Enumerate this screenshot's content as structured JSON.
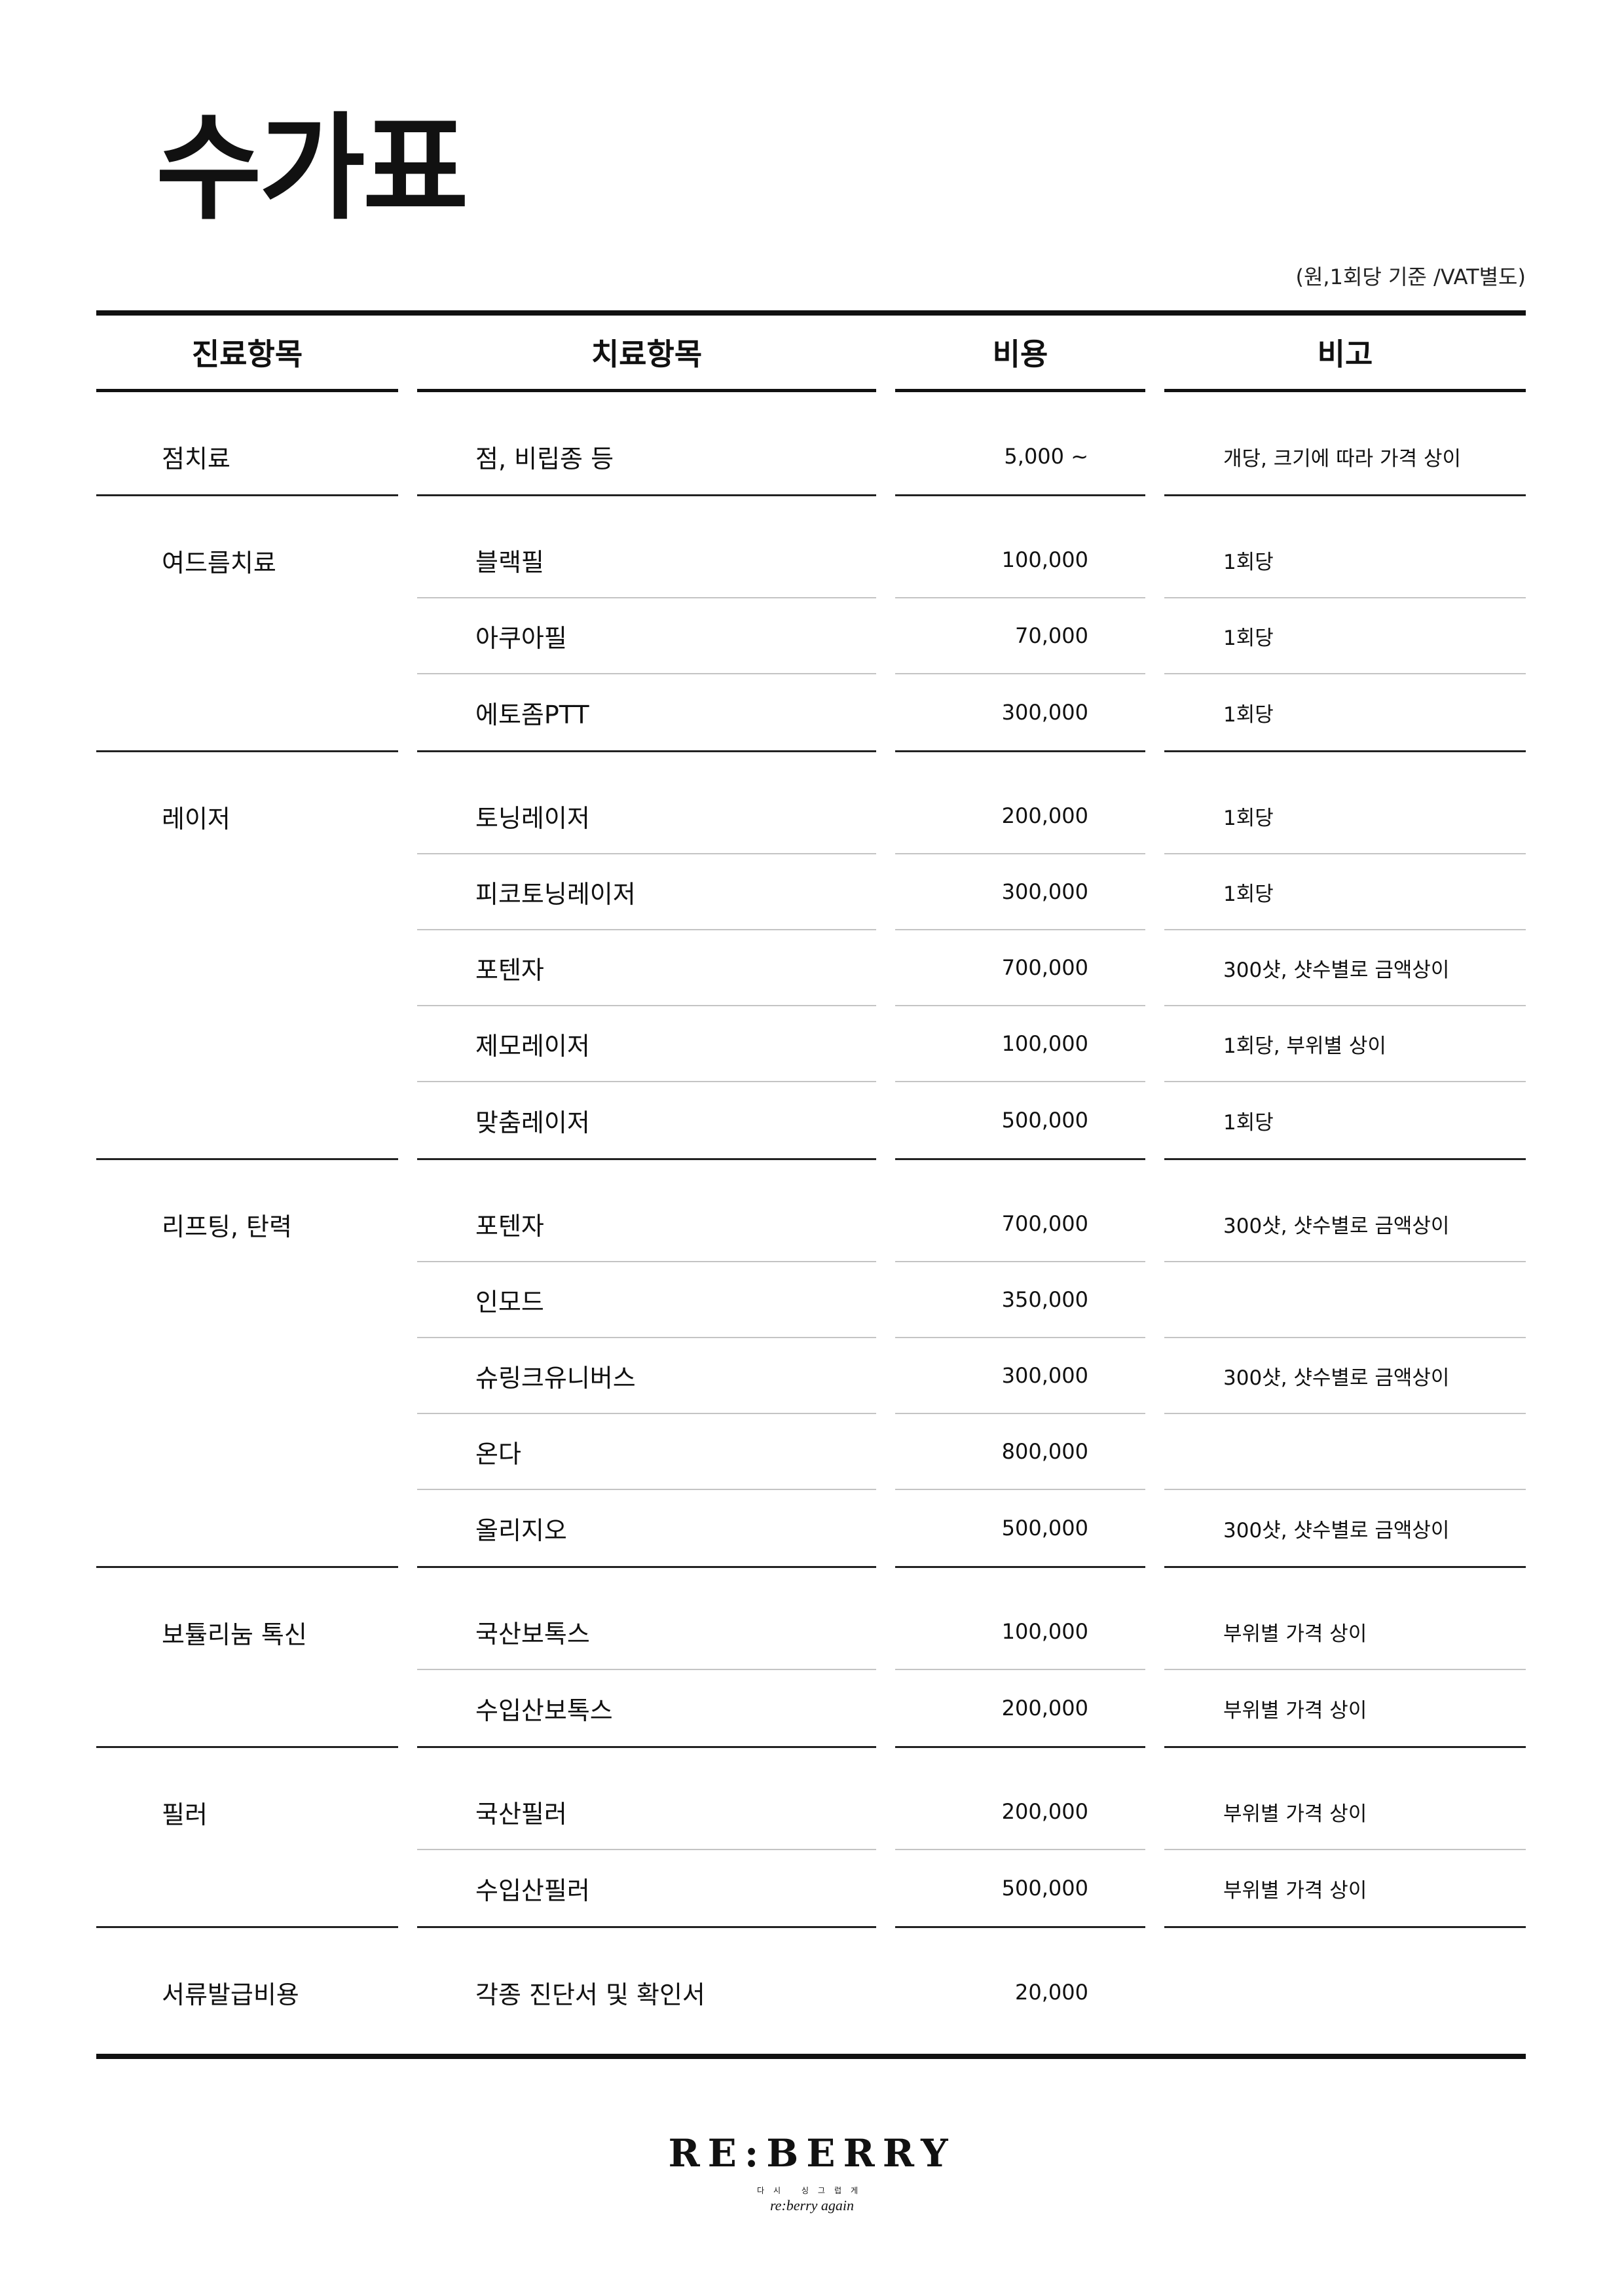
{
  "title": "수가표",
  "unit_note": "(원,1회당 기준 /VAT별도)",
  "headers": [
    "진료항목",
    "치료항목",
    "비용",
    "비고"
  ],
  "groups": [
    {
      "category": "점치료",
      "rows": [
        {
          "item": "점, 비립종 등",
          "price": "5,000 ~",
          "note": "개당, 크기에 따라 가격 상이"
        }
      ]
    },
    {
      "category": "여드름치료",
      "rows": [
        {
          "item": "블랙필",
          "price": "100,000",
          "note": "1회당"
        },
        {
          "item": "아쿠아필",
          "price": "70,000",
          "note": "1회당"
        },
        {
          "item": "에토좀PTT",
          "price": "300,000",
          "note": "1회당"
        }
      ]
    },
    {
      "category": "레이저",
      "rows": [
        {
          "item": "토닝레이저",
          "price": "200,000",
          "note": "1회당"
        },
        {
          "item": "피코토닝레이저",
          "price": "300,000",
          "note": "1회당"
        },
        {
          "item": "포텐자",
          "price": "700,000",
          "note": "300샷, 샷수별로 금액상이"
        },
        {
          "item": "제모레이저",
          "price": "100,000",
          "note": "1회당, 부위별 상이"
        },
        {
          "item": "맞춤레이저",
          "price": "500,000",
          "note": "1회당"
        }
      ]
    },
    {
      "category": "리프팅, 탄력",
      "rows": [
        {
          "item": "포텐자",
          "price": "700,000",
          "note": "300샷, 샷수별로 금액상이"
        },
        {
          "item": "인모드",
          "price": "350,000",
          "note": ""
        },
        {
          "item": "슈링크유니버스",
          "price": "300,000",
          "note": "300샷, 샷수별로 금액상이"
        },
        {
          "item": "온다",
          "price": "800,000",
          "note": ""
        },
        {
          "item": "올리지오",
          "price": "500,000",
          "note": "300샷, 샷수별로 금액상이"
        }
      ]
    },
    {
      "category": "보튤리눔 톡신",
      "rows": [
        {
          "item": "국산보톡스",
          "price": "100,000",
          "note": "부위별 가격 상이"
        },
        {
          "item": "수입산보톡스",
          "price": "200,000",
          "note": "부위별 가격 상이"
        }
      ]
    },
    {
      "category": "필러",
      "rows": [
        {
          "item": "국산필러",
          "price": "200,000",
          "note": "부위별 가격 상이"
        },
        {
          "item": "수입산필러",
          "price": "500,000",
          "note": "부위별 가격 상이"
        }
      ]
    },
    {
      "category": "서류발급비용",
      "rows": [
        {
          "item": "각종 진단서 및 확인서",
          "price": "20,000",
          "note": ""
        }
      ]
    }
  ],
  "logo": {
    "main": "RE:BERRY",
    "sub": "다시 싱그럽게",
    "script": "re:berry again"
  }
}
